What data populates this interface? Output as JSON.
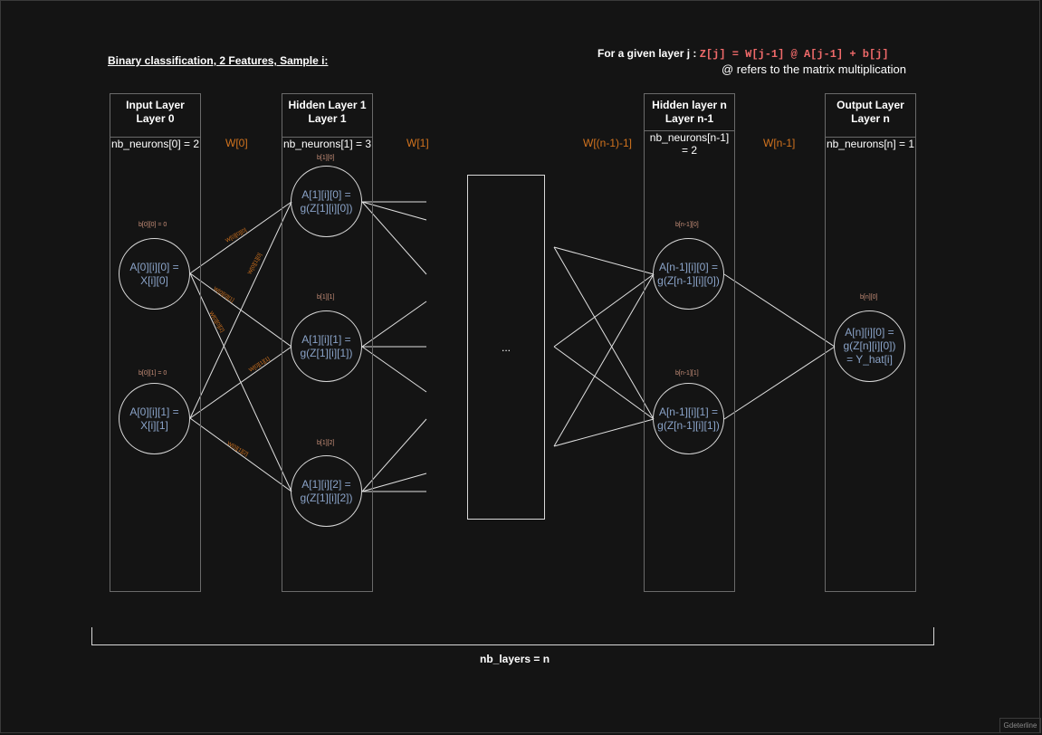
{
  "title": "Binary classification, 2 Features, Sample i:",
  "formula": {
    "prefix": "For a given layer j : ",
    "code": "Z[j] = W[j-1] @ A[j-1] + b[j]",
    "note": "@ refers to the matrix multiplication"
  },
  "layers": [
    {
      "head1": "Input Layer",
      "head2": "Layer 0",
      "count": "nb_neurons[0] = 2"
    },
    {
      "head1": "Hidden Layer 1",
      "head2": "Layer 1",
      "count": "nb_neurons[1] = 3"
    },
    {
      "head1": "Hidden layer n",
      "head2": "Layer n-1",
      "count": "nb_neurons[n-1]\n= 2"
    },
    {
      "head1": "Output Layer",
      "head2": "Layer n",
      "count": "nb_neurons[n] = 1"
    }
  ],
  "weights": [
    "W[0]",
    "W[1]",
    "W[(n-1)-1]",
    "W[n-1]"
  ],
  "neurons": {
    "input": [
      "A[0][i][0] =\nX[i][0]",
      "A[0][i][1] =\nX[i][1]"
    ],
    "hidden1": [
      "A[1][i][0] =\ng(Z[1][i][0])",
      "A[1][i][1] =\ng(Z[1][i][1])",
      "A[1][i][2] =\ng(Z[1][i][2])"
    ],
    "hiddenN": [
      "A[n-1][i][0] =\ng(Z[n-1][i][0])",
      "A[n-1][i][1] =\ng(Z[n-1][i][1])"
    ],
    "output": [
      "A[n][i][0] =\ng(Z[n][i][0])\n= Y_hat[i]"
    ]
  },
  "biases": {
    "input": [
      "b[0][0] = 0",
      "b[0][1] = 0"
    ],
    "hidden1": [
      "b[1][0]",
      "b[1][1]",
      "b[1][2]"
    ],
    "hiddenN": [
      "b[n-1][0]",
      "b[n-1][1]"
    ],
    "output": [
      "b[n][0]"
    ]
  },
  "edge_weights": [
    "W[0][0][0]",
    "W[0][1][0]",
    "W[0][0][1]",
    "W[0][0][2]",
    "W[0][1][1]",
    "W[0][1][2]"
  ],
  "ellipsis": "...",
  "bracket_label": "nb_layers = n",
  "watermark": "Gdeterline",
  "colors": {
    "background": "#141414",
    "weight": "#d2731e",
    "neuron_text": "#8aa3c8",
    "formula": "#f06a6a"
  }
}
